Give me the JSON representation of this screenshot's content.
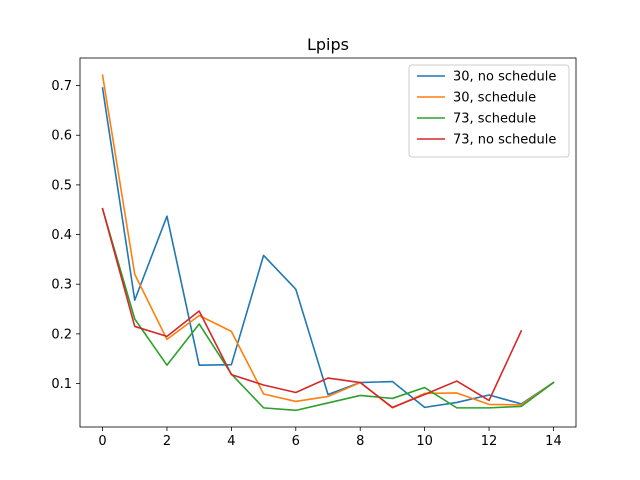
{
  "chart_data": {
    "type": "line",
    "title": "Lpips",
    "xlabel": "",
    "ylabel": "",
    "xlim": [
      -0.7,
      14.7
    ],
    "ylim": [
      0.0125,
      0.7555
    ],
    "xticks": [
      0,
      2,
      4,
      6,
      8,
      10,
      12,
      14
    ],
    "yticks": [
      0.1,
      0.2,
      0.3,
      0.4,
      0.5,
      0.6,
      0.7
    ],
    "grid": false,
    "legend_position": "top-right",
    "series": [
      {
        "name": "30, no schedule",
        "color": "#1f77b4",
        "x": [
          0,
          1,
          2,
          3,
          4,
          5,
          6,
          7,
          8,
          9,
          10,
          11,
          12,
          13,
          14
        ],
        "y": [
          0.695,
          0.268,
          0.437,
          0.137,
          0.138,
          0.358,
          0.29,
          0.078,
          0.102,
          0.104,
          0.052,
          0.062,
          0.077,
          0.059,
          0.102
        ]
      },
      {
        "name": "30, schedule",
        "color": "#ff7f0e",
        "x": [
          0,
          1,
          2,
          3,
          4,
          5,
          6,
          7,
          8,
          9,
          10,
          11,
          12,
          13,
          14
        ],
        "y": [
          0.721,
          0.32,
          0.189,
          0.237,
          0.205,
          0.079,
          0.064,
          0.074,
          0.102,
          0.051,
          0.08,
          0.081,
          0.058,
          0.057,
          0.102
        ]
      },
      {
        "name": "73, schedule",
        "color": "#2ca02c",
        "x": [
          0,
          1,
          2,
          3,
          4,
          5,
          6,
          7,
          8,
          9,
          10,
          11,
          12,
          13,
          14
        ],
        "y": [
          0.452,
          0.23,
          0.137,
          0.22,
          0.119,
          0.051,
          0.046,
          0.061,
          0.076,
          0.07,
          0.092,
          0.051,
          0.051,
          0.054,
          0.102
        ]
      },
      {
        "name": "73, no schedule",
        "color": "#d62728",
        "x": [
          0,
          1,
          2,
          3,
          4,
          5,
          6,
          7,
          8,
          9,
          10,
          11,
          12,
          13
        ],
        "y": [
          0.452,
          0.215,
          0.195,
          0.246,
          0.118,
          0.097,
          0.082,
          0.111,
          0.102,
          0.052,
          0.078,
          0.105,
          0.066,
          0.206
        ]
      }
    ]
  }
}
